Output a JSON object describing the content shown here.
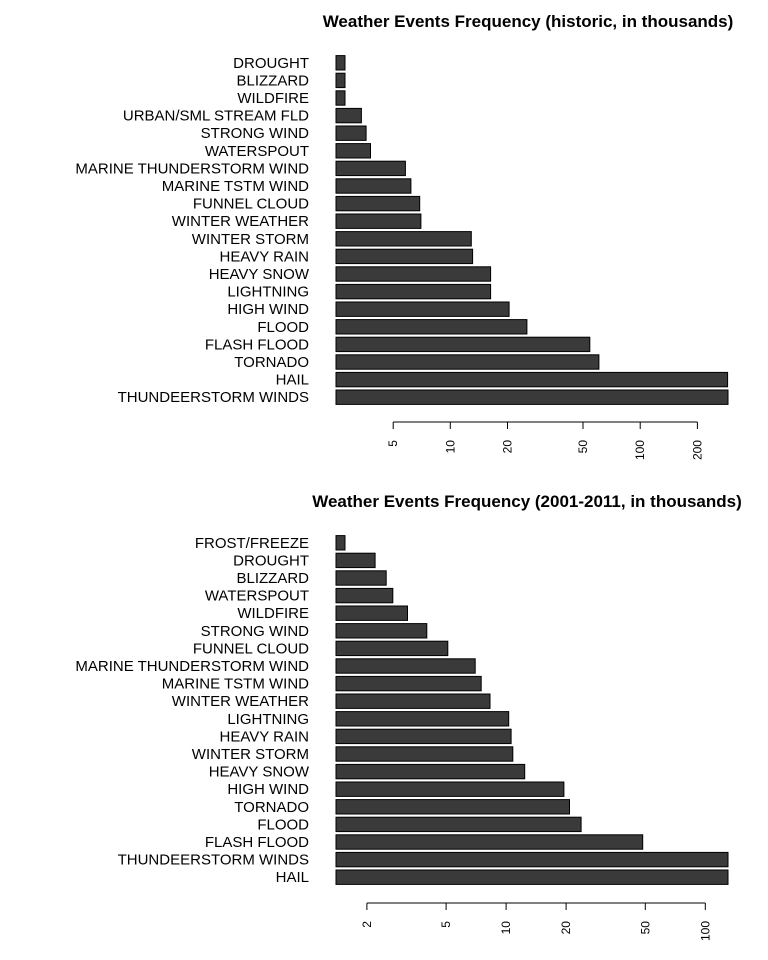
{
  "colors": {
    "bar": "#3a3a3a",
    "bar_stroke": "#000000",
    "background": "#ffffff"
  },
  "chart_data": [
    {
      "type": "bar",
      "orientation": "horizontal",
      "title": "Weather Events Frequency (historic, in thousands)",
      "x_scale": "log",
      "xlim": [
        2.5,
        290
      ],
      "ticks": [
        5,
        10,
        20,
        50,
        100,
        200
      ],
      "categories": [
        "DROUGHT",
        "BLIZZARD",
        "WILDFIRE",
        "URBAN/SML STREAM FLD",
        "STRONG WIND",
        "WATERSPOUT",
        "MARINE THUNDERSTORM WIND",
        "MARINE TSTM WIND",
        "FUNNEL CLOUD",
        "WINTER WEATHER",
        "WINTER STORM",
        "HEAVY RAIN",
        "HEAVY SNOW",
        "LIGHTNING",
        "HIGH WIND",
        "FLOOD",
        "FLASH FLOOD",
        "TORNADO",
        "HAIL",
        "THUNDEERSTORM WINDS"
      ],
      "values": [
        2.5,
        2.7,
        2.7,
        3.4,
        3.6,
        3.8,
        5.8,
        6.2,
        6.9,
        7.0,
        12.9,
        13.1,
        16.3,
        16.3,
        20.4,
        25.3,
        54.3,
        60.6,
        288.7,
        323.0
      ]
    },
    {
      "type": "bar",
      "orientation": "horizontal",
      "title": "Weather Events Frequency (2001-2011, in thousands)",
      "x_scale": "log",
      "xlim": [
        1.4,
        130
      ],
      "ticks": [
        2,
        5,
        10,
        20,
        50,
        100
      ],
      "categories": [
        "FROST/FREEZE",
        "DROUGHT",
        "BLIZZARD",
        "WATERSPOUT",
        "WILDFIRE",
        "STRONG WIND",
        "FUNNEL CLOUD",
        "MARINE THUNDERSTORM WIND",
        "MARINE TSTM WIND",
        "WINTER WEATHER",
        "LIGHTNING",
        "HEAVY RAIN",
        "WINTER STORM",
        "HEAVY SNOW",
        "HIGH WIND",
        "TORNADO",
        "FLOOD",
        "FLASH FLOOD",
        "THUNDEERSTORM WINDS",
        "HAIL"
      ],
      "values": [
        1.4,
        2.2,
        2.5,
        2.7,
        3.2,
        4.0,
        5.1,
        7.0,
        7.5,
        8.3,
        10.3,
        10.6,
        10.8,
        12.4,
        19.5,
        20.8,
        23.8,
        48.5,
        130,
        130
      ]
    }
  ]
}
